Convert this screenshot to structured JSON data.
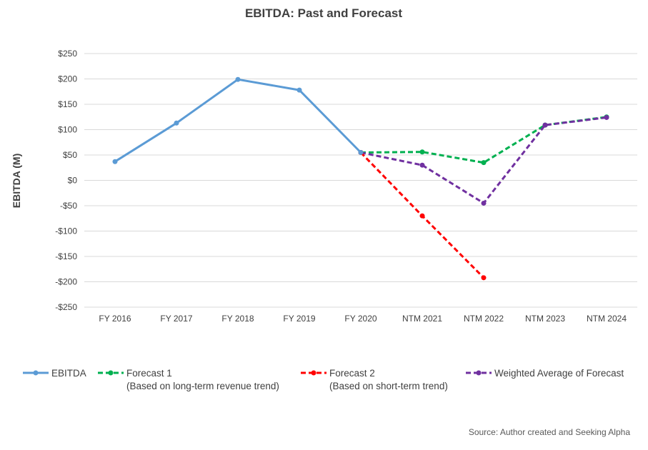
{
  "chart_data": {
    "type": "line",
    "title": "EBITDA: Past and Forecast",
    "ylabel": "EBITDA (M)",
    "xlabel": "",
    "categories": [
      "FY 2016",
      "FY 2017",
      "FY 2018",
      "FY 2019",
      "FY 2020",
      "NTM 2021",
      "NTM 2022",
      "NTM 2023",
      "NTM 2024"
    ],
    "ylim": [
      -250,
      250
    ],
    "yticks": [
      250,
      200,
      150,
      100,
      50,
      0,
      -50,
      -100,
      -150,
      -200,
      -250
    ],
    "ytick_labels": [
      "$250",
      "$200",
      "$150",
      "$100",
      "$50",
      "$0",
      "-$50",
      "-$100",
      "-$150",
      "-$200",
      "-$250"
    ],
    "grid": true,
    "legend_position": "bottom",
    "series": [
      {
        "name": "EBITDA",
        "color": "#5b9bd5",
        "dashed": false,
        "values": [
          37,
          113,
          199,
          178,
          55,
          null,
          null,
          null,
          null
        ]
      },
      {
        "name": "Forecast 1",
        "subtitle": "(Based on long-term revenue trend)",
        "color": "#00b050",
        "dashed": true,
        "values": [
          null,
          null,
          null,
          null,
          55,
          56,
          35,
          109,
          125
        ]
      },
      {
        "name": "Forecast 2",
        "subtitle": "(Based on short-term trend)",
        "color": "#ff0000",
        "dashed": true,
        "values": [
          null,
          null,
          null,
          null,
          55,
          -70,
          -192,
          null,
          null
        ]
      },
      {
        "name": "Weighted Average of Forecast",
        "color": "#7030a0",
        "dashed": true,
        "values": [
          null,
          null,
          null,
          null,
          55,
          30,
          -45,
          109,
          124
        ]
      }
    ],
    "source": "Source: Author created and Seeking Alpha"
  }
}
